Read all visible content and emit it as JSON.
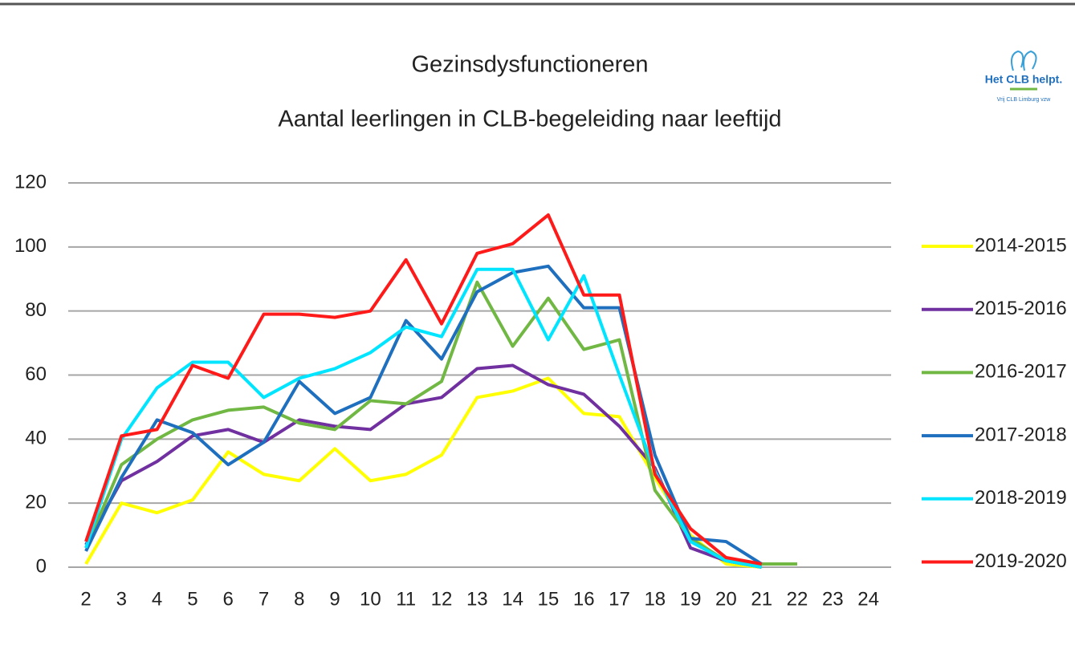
{
  "chart_data": {
    "type": "line",
    "title": "Gezinsdysfunctioneren",
    "subtitle": "Aantal leerlingen in CLB-begeleiding naar leeftijd",
    "logo": {
      "name": "Het CLB helpt.",
      "org": "Vrij CLB Limburg vzw"
    },
    "categories": [
      "2",
      "3",
      "4",
      "5",
      "6",
      "7",
      "8",
      "9",
      "10",
      "11",
      "12",
      "13",
      "14",
      "15",
      "16",
      "17",
      "18",
      "19",
      "20",
      "21",
      "22",
      "23",
      "24"
    ],
    "ylim": [
      0,
      120
    ],
    "yticks": [
      0,
      20,
      40,
      60,
      80,
      100,
      120
    ],
    "grid": true,
    "legend": "right",
    "series": [
      {
        "name": "2014-2015",
        "color": "#ffff00",
        "values": [
          1,
          20,
          17,
          21,
          36,
          29,
          27,
          37,
          27,
          29,
          35,
          53,
          55,
          59,
          48,
          47,
          28,
          10,
          1,
          0,
          null,
          null,
          null
        ]
      },
      {
        "name": "2015-2016",
        "color": "#7030a0",
        "values": [
          7,
          27,
          33,
          41,
          43,
          39,
          46,
          44,
          43,
          51,
          53,
          62,
          63,
          57,
          54,
          44,
          31,
          6,
          2,
          0,
          null,
          null,
          null
        ]
      },
      {
        "name": "2016-2017",
        "color": "#70b843",
        "values": [
          6,
          32,
          40,
          46,
          49,
          50,
          45,
          43,
          52,
          51,
          58,
          89,
          69,
          84,
          68,
          71,
          24,
          9,
          2,
          1,
          1,
          null,
          null
        ]
      },
      {
        "name": "2017-2018",
        "color": "#1f6fbf",
        "values": [
          5,
          28,
          46,
          42,
          32,
          39,
          58,
          48,
          53,
          77,
          65,
          86,
          92,
          94,
          81,
          81,
          35,
          9,
          8,
          1,
          null,
          null,
          null
        ]
      },
      {
        "name": "2018-2019",
        "color": "#00e5ff",
        "values": [
          6,
          40,
          56,
          64,
          64,
          53,
          59,
          62,
          67,
          75,
          72,
          93,
          93,
          71,
          91,
          60,
          30,
          8,
          2,
          0,
          null,
          null,
          null
        ]
      },
      {
        "name": "2019-2020",
        "color": "#ff1a1a",
        "values": [
          8,
          41,
          43,
          63,
          59,
          79,
          79,
          78,
          80,
          96,
          76,
          98,
          101,
          110,
          85,
          85,
          29,
          12,
          3,
          1,
          null,
          null,
          null
        ]
      }
    ]
  }
}
